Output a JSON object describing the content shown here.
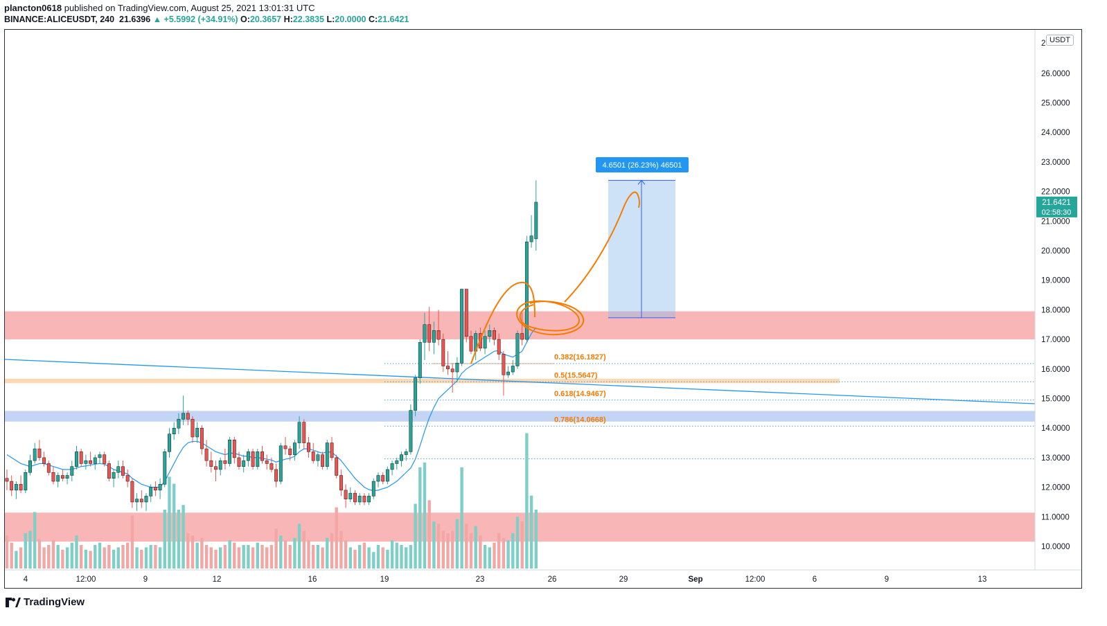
{
  "header": {
    "publisher": "plancton0618",
    "published_text": "published on TradingView.com, August 25, 2021 13:01:31 UTC",
    "symbol": "BINANCE:ALICEUSDT, 240",
    "last": "21.6396",
    "change": "▲ +5.5992 (+34.91%)",
    "o_label": "O:",
    "o_val": "20.3657",
    "h_label": "H:",
    "h_val": "22.3835",
    "l_label": "L:",
    "l_val": "20.0000",
    "c_label": "C:",
    "c_val": "21.6421"
  },
  "brand": "TradingView",
  "chart_data": {
    "type": "candlestick",
    "currency": "USDT",
    "ylim": [
      9.2,
      27.2
    ],
    "y_ticks": [
      "10.0000",
      "11.0000",
      "12.0000",
      "13.0000",
      "14.0000",
      "15.0000",
      "16.0000",
      "17.0000",
      "18.0000",
      "19.0000",
      "20.0000",
      "21.0000",
      "22.0000",
      "23.0000",
      "24.0000",
      "25.0000",
      "26.0000"
    ],
    "x_ticks": [
      "4",
      "12:00",
      "9",
      "12",
      "16",
      "19",
      "23",
      "26",
      "29",
      "Sep",
      "12:00",
      "6",
      "9",
      "13"
    ],
    "last_price_label": "21.6421",
    "countdown_label": "02:58:30",
    "measure_label": "4.6501 (26.23%) 46501",
    "measure_range": [
      17.73,
      22.38
    ],
    "fib_levels": [
      {
        "label": "0.382(16.1827)",
        "value": 16.1827
      },
      {
        "label": "0.5(15.5647)",
        "value": 15.5647
      },
      {
        "label": "0.618(14.9467)",
        "value": 14.9467
      },
      {
        "label": "0.786(14.0668)",
        "value": 14.0668
      }
    ],
    "zones": [
      {
        "name": "resistance",
        "from": 17.0,
        "to": 17.95,
        "color": "#f7a9a9"
      },
      {
        "name": "support-high",
        "from": 14.22,
        "to": 14.58,
        "color": "#b9cdf3"
      },
      {
        "name": "support-low",
        "from": 10.16,
        "to": 11.14,
        "color": "#f7a9a9"
      },
      {
        "name": "fib-0.5-band",
        "from": 15.52,
        "to": 15.67,
        "color": "#fbd2a6"
      }
    ],
    "candles": [
      [
        12.3,
        12.6,
        11.9,
        12.2
      ],
      [
        12.2,
        12.4,
        11.7,
        11.9
      ],
      [
        11.9,
        12.2,
        11.6,
        12.1
      ],
      [
        12.1,
        12.4,
        11.8,
        11.9
      ],
      [
        11.9,
        12.6,
        11.8,
        12.5
      ],
      [
        12.5,
        13.1,
        12.4,
        12.9
      ],
      [
        12.9,
        13.5,
        12.8,
        13.3
      ],
      [
        13.3,
        13.6,
        12.9,
        13.0
      ],
      [
        13.0,
        13.2,
        12.7,
        12.8
      ],
      [
        12.8,
        12.9,
        12.4,
        12.5
      ],
      [
        12.5,
        12.7,
        12.1,
        12.2
      ],
      [
        12.2,
        12.5,
        12.0,
        12.4
      ],
      [
        12.4,
        12.6,
        12.2,
        12.3
      ],
      [
        12.3,
        12.5,
        12.1,
        12.4
      ],
      [
        12.4,
        12.9,
        12.2,
        12.7
      ],
      [
        12.7,
        13.4,
        12.6,
        13.2
      ],
      [
        13.2,
        13.3,
        12.7,
        12.8
      ],
      [
        12.8,
        13.1,
        12.6,
        12.9
      ],
      [
        12.9,
        13.2,
        12.7,
        12.8
      ],
      [
        12.8,
        13.1,
        12.6,
        13.0
      ],
      [
        13.0,
        13.2,
        12.8,
        13.1
      ],
      [
        13.1,
        13.2,
        12.7,
        12.8
      ],
      [
        12.8,
        12.9,
        12.2,
        12.3
      ],
      [
        12.3,
        12.6,
        12.0,
        12.5
      ],
      [
        12.5,
        12.9,
        12.3,
        12.7
      ],
      [
        12.7,
        12.9,
        12.3,
        12.4
      ],
      [
        12.4,
        12.6,
        12.0,
        12.2
      ],
      [
        12.2,
        12.3,
        11.3,
        11.5
      ],
      [
        11.5,
        11.8,
        11.2,
        11.6
      ],
      [
        11.6,
        11.9,
        11.3,
        11.5
      ],
      [
        11.5,
        11.8,
        11.2,
        11.7
      ],
      [
        11.7,
        12.1,
        11.5,
        12.0
      ],
      [
        12.0,
        12.2,
        11.7,
        11.9
      ],
      [
        11.9,
        12.3,
        11.6,
        12.1
      ],
      [
        12.1,
        13.3,
        12.0,
        13.2
      ],
      [
        13.2,
        14.0,
        13.0,
        13.8
      ],
      [
        13.8,
        14.2,
        13.6,
        14.0
      ],
      [
        14.0,
        14.5,
        13.8,
        14.3
      ],
      [
        14.3,
        15.1,
        14.1,
        14.5
      ],
      [
        14.5,
        14.6,
        14.1,
        14.3
      ],
      [
        14.3,
        14.4,
        13.5,
        13.7
      ],
      [
        13.7,
        14.2,
        13.5,
        14.0
      ],
      [
        14.0,
        14.1,
        13.1,
        13.3
      ],
      [
        13.3,
        13.6,
        12.7,
        12.9
      ],
      [
        12.9,
        13.2,
        12.5,
        12.7
      ],
      [
        12.7,
        12.9,
        12.2,
        12.6
      ],
      [
        12.6,
        13.0,
        12.4,
        12.9
      ],
      [
        12.9,
        13.3,
        12.6,
        12.8
      ],
      [
        12.8,
        13.7,
        12.7,
        13.6
      ],
      [
        13.6,
        13.7,
        12.8,
        13.0
      ],
      [
        13.0,
        13.2,
        12.6,
        12.7
      ],
      [
        12.7,
        13.1,
        12.5,
        12.9
      ],
      [
        12.9,
        13.3,
        12.7,
        13.2
      ],
      [
        13.2,
        13.3,
        12.6,
        12.7
      ],
      [
        12.7,
        13.3,
        12.6,
        13.2
      ],
      [
        13.2,
        13.4,
        12.8,
        12.9
      ],
      [
        12.9,
        13.1,
        12.6,
        12.8
      ],
      [
        12.8,
        13.0,
        12.5,
        12.6
      ],
      [
        12.6,
        12.8,
        12.0,
        12.2
      ],
      [
        12.2,
        13.5,
        12.1,
        13.4
      ],
      [
        13.4,
        13.7,
        13.1,
        13.3
      ],
      [
        13.3,
        13.4,
        12.9,
        13.1
      ],
      [
        13.1,
        13.6,
        12.9,
        13.5
      ],
      [
        13.5,
        14.4,
        13.3,
        14.2
      ],
      [
        14.2,
        14.3,
        13.3,
        13.5
      ],
      [
        13.5,
        13.7,
        13.0,
        13.2
      ],
      [
        13.2,
        13.5,
        12.8,
        12.9
      ],
      [
        12.9,
        13.2,
        12.7,
        13.1
      ],
      [
        13.1,
        13.2,
        12.6,
        12.7
      ],
      [
        12.7,
        13.6,
        12.6,
        13.5
      ],
      [
        13.5,
        13.7,
        12.9,
        13.0
      ],
      [
        13.0,
        13.1,
        12.3,
        12.4
      ],
      [
        12.4,
        12.6,
        11.7,
        11.9
      ],
      [
        11.9,
        12.1,
        11.3,
        11.6
      ],
      [
        11.6,
        12.0,
        11.5,
        11.8
      ],
      [
        11.8,
        11.9,
        11.4,
        11.5
      ],
      [
        11.5,
        11.8,
        11.4,
        11.7
      ],
      [
        11.7,
        11.8,
        11.4,
        11.5
      ],
      [
        11.5,
        11.8,
        11.4,
        11.7
      ],
      [
        11.7,
        12.3,
        11.6,
        12.2
      ],
      [
        12.2,
        12.5,
        12.0,
        12.4
      ],
      [
        12.4,
        12.5,
        12.1,
        12.2
      ],
      [
        12.2,
        12.7,
        12.1,
        12.6
      ],
      [
        12.6,
        12.9,
        12.4,
        12.8
      ],
      [
        12.8,
        13.0,
        12.6,
        12.9
      ],
      [
        12.9,
        13.2,
        12.7,
        13.1
      ],
      [
        13.1,
        13.3,
        12.9,
        13.2
      ],
      [
        13.2,
        14.8,
        13.1,
        14.6
      ],
      [
        14.6,
        15.8,
        14.4,
        15.7
      ],
      [
        15.7,
        17.0,
        15.5,
        16.9
      ],
      [
        16.9,
        17.9,
        16.3,
        17.5
      ],
      [
        17.5,
        18.1,
        16.6,
        16.9
      ],
      [
        16.9,
        17.6,
        16.5,
        17.3
      ],
      [
        17.3,
        18.0,
        16.8,
        17.0
      ],
      [
        17.0,
        17.2,
        15.9,
        16.1
      ],
      [
        16.1,
        16.6,
        15.8,
        16.0
      ],
      [
        16.0,
        16.2,
        15.2,
        15.9
      ],
      [
        15.9,
        16.4,
        15.6,
        16.2
      ],
      [
        16.2,
        18.7,
        16.1,
        18.7
      ],
      [
        18.7,
        18.7,
        16.9,
        17.1
      ],
      [
        17.1,
        17.3,
        16.5,
        16.6
      ],
      [
        16.6,
        17.3,
        16.3,
        17.2
      ],
      [
        17.2,
        17.4,
        16.6,
        16.7
      ],
      [
        16.7,
        17.3,
        16.5,
        17.1
      ],
      [
        17.1,
        17.5,
        16.9,
        17.3
      ],
      [
        17.3,
        17.4,
        16.8,
        17.0
      ],
      [
        17.0,
        17.2,
        16.3,
        16.5
      ],
      [
        16.5,
        16.6,
        15.1,
        15.8
      ],
      [
        15.8,
        16.1,
        15.7,
        15.9
      ],
      [
        15.9,
        16.3,
        15.8,
        16.1
      ],
      [
        16.1,
        17.3,
        16.0,
        17.2
      ],
      [
        17.2,
        17.9,
        16.8,
        17.0
      ],
      [
        17.0,
        20.5,
        16.9,
        20.3
      ],
      [
        20.3,
        21.2,
        20.1,
        20.5
      ],
      [
        20.4,
        22.38,
        20.0,
        21.64
      ]
    ],
    "volumes": [
      0.28,
      0.22,
      0.15,
      0.18,
      0.3,
      0.32,
      0.48,
      0.25,
      0.18,
      0.2,
      0.24,
      0.2,
      0.16,
      0.18,
      0.22,
      0.28,
      0.2,
      0.16,
      0.15,
      0.2,
      0.22,
      0.18,
      0.2,
      0.16,
      0.18,
      0.2,
      0.22,
      0.45,
      0.18,
      0.16,
      0.18,
      0.2,
      0.2,
      0.18,
      0.5,
      0.78,
      0.72,
      0.5,
      0.54,
      0.3,
      0.28,
      0.22,
      0.26,
      0.2,
      0.18,
      0.16,
      0.18,
      0.2,
      0.24,
      0.22,
      0.18,
      0.2,
      0.2,
      0.18,
      0.22,
      0.2,
      0.18,
      0.2,
      0.34,
      0.28,
      0.24,
      0.2,
      0.26,
      0.38,
      0.32,
      0.24,
      0.2,
      0.2,
      0.18,
      0.26,
      0.3,
      0.52,
      0.32,
      0.24,
      0.18,
      0.16,
      0.2,
      0.22,
      0.18,
      0.14,
      0.2,
      0.18,
      0.16,
      0.24,
      0.22,
      0.2,
      0.18,
      0.2,
      0.55,
      0.86,
      0.9,
      0.58,
      0.4,
      0.38,
      0.32,
      0.3,
      0.32,
      0.42,
      0.86,
      0.38,
      0.3,
      0.36,
      0.28,
      0.2,
      0.18,
      0.22,
      0.3,
      0.26,
      0.24,
      0.3,
      0.44,
      0.4,
      1.15,
      0.62,
      0.5
    ],
    "ma": [
      13.1,
      13.0,
      12.9,
      12.8,
      12.75,
      12.7,
      12.75,
      12.8,
      12.8,
      12.75,
      12.7,
      12.65,
      12.6,
      12.6,
      12.6,
      12.65,
      12.7,
      12.72,
      12.75,
      12.78,
      12.8,
      12.78,
      12.7,
      12.6,
      12.55,
      12.5,
      12.45,
      12.3,
      12.2,
      12.1,
      12.05,
      12.0,
      12.0,
      12.0,
      12.2,
      12.5,
      12.8,
      13.1,
      13.35,
      13.5,
      13.55,
      13.55,
      13.5,
      13.4,
      13.3,
      13.2,
      13.15,
      13.1,
      13.15,
      13.15,
      13.1,
      13.05,
      13.05,
      13.0,
      13.0,
      12.98,
      12.95,
      12.92,
      12.85,
      12.9,
      12.95,
      12.98,
      13.05,
      13.2,
      13.3,
      13.3,
      13.25,
      13.2,
      13.15,
      13.2,
      13.18,
      13.05,
      12.9,
      12.7,
      12.5,
      12.3,
      12.15,
      12.0,
      11.92,
      11.88,
      11.9,
      11.95,
      12.0,
      12.1,
      12.2,
      12.35,
      12.5,
      12.65,
      12.95,
      13.4,
      13.9,
      14.35,
      14.7,
      15.0,
      15.15,
      15.3,
      15.45,
      15.6,
      15.85,
      16.0,
      16.1,
      16.2,
      16.3,
      16.4,
      16.5,
      16.6,
      16.62,
      16.5,
      16.45,
      16.4,
      16.5,
      16.6,
      16.9,
      17.2,
      17.4
    ]
  }
}
